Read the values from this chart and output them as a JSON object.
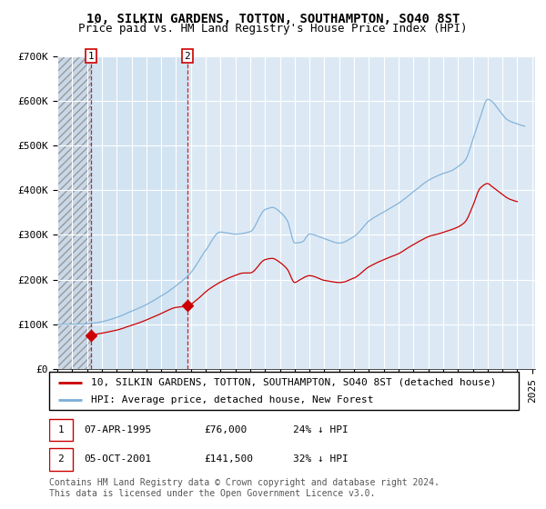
{
  "title": "10, SILKIN GARDENS, TOTTON, SOUTHAMPTON, SO40 8ST",
  "subtitle": "Price paid vs. HM Land Registry's House Price Index (HPI)",
  "ylim": [
    0,
    700000
  ],
  "yticks": [
    0,
    100000,
    200000,
    300000,
    400000,
    500000,
    600000,
    700000
  ],
  "ytick_labels": [
    "£0",
    "£100K",
    "£200K",
    "£300K",
    "£400K",
    "£500K",
    "£600K",
    "£700K"
  ],
  "xlim_start": 1993.0,
  "xlim_end": 2025.2,
  "hatch_end": 1995.27,
  "shade_end": 2001.76,
  "background_color": "#ffffff",
  "plot_bg_color": "#dce9f5",
  "grid_color": "#ffffff",
  "transaction1_date": 1995.27,
  "transaction1_price": 76000,
  "transaction2_date": 2001.76,
  "transaction2_price": 141500,
  "transaction_color": "#cc0000",
  "hpi_color": "#7aaed6",
  "legend_label_red": "10, SILKIN GARDENS, TOTTON, SOUTHAMPTON, SO40 8ST (detached house)",
  "legend_label_blue": "HPI: Average price, detached house, New Forest",
  "note1_text": "07-APR-1995",
  "note1_price": "£76,000",
  "note1_hpi": "24% ↓ HPI",
  "note2_text": "05-OCT-2001",
  "note2_price": "£141,500",
  "note2_hpi": "32% ↓ HPI",
  "footer_text": "Contains HM Land Registry data © Crown copyright and database right 2024.\nThis data is licensed under the Open Government Licence v3.0.",
  "title_fontsize": 10,
  "subtitle_fontsize": 9,
  "tick_fontsize": 8,
  "legend_fontsize": 8,
  "note_fontsize": 8
}
